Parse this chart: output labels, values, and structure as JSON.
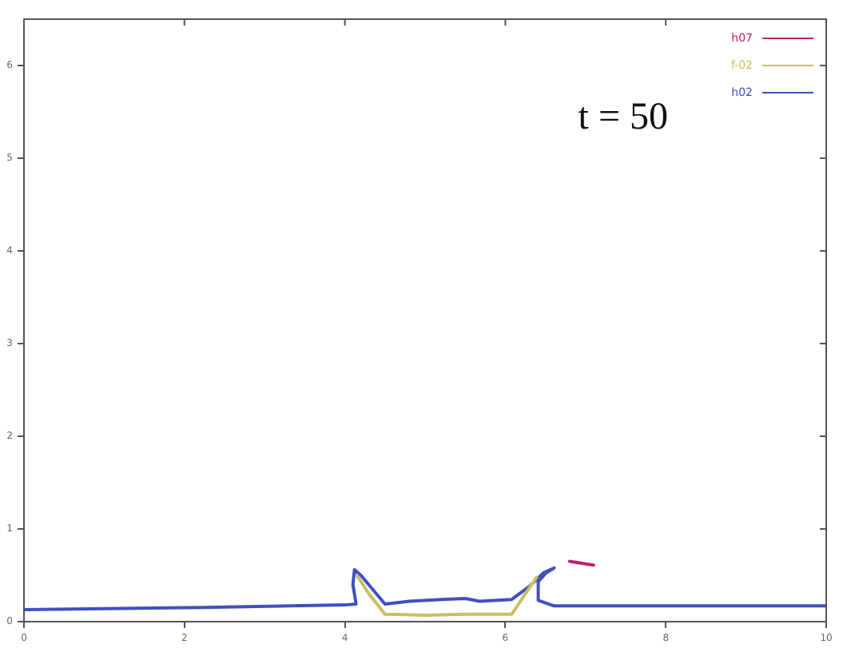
{
  "chart_data": {
    "type": "line",
    "annotations": [
      "t = 50"
    ],
    "xlim": [
      0,
      10
    ],
    "xticks": [
      0,
      2,
      4,
      6,
      8,
      10
    ],
    "ylim": [
      0,
      6.5
    ],
    "yticks": [
      0,
      1,
      2,
      3,
      4,
      5,
      6
    ],
    "legend": "top right",
    "marker": "none",
    "line_style": "solid",
    "grid": false,
    "series": [
      {
        "name": "h07",
        "color": "#c02070",
        "x": [
          6.8,
          7.1
        ],
        "values": [
          0.65,
          0.61
        ]
      },
      {
        "name": "f-02",
        "color": "#c8c060",
        "x": [
          4.15,
          4.3,
          4.5,
          5.0,
          5.5,
          6.08,
          6.25,
          6.39
        ],
        "values": [
          0.5,
          0.3,
          0.08,
          0.07,
          0.08,
          0.08,
          0.3,
          0.48
        ]
      },
      {
        "name": "h02",
        "color": "#4050c0",
        "x": [
          0,
          2,
          4,
          4.14,
          4.1,
          4.12,
          4.2,
          4.5,
          4.8,
          5.21,
          5.5,
          5.68,
          6.08,
          6.3,
          6.48,
          6.61,
          6.5,
          6.41,
          6.41,
          6.61,
          8,
          10
        ],
        "values": [
          0.13,
          0.15,
          0.18,
          0.19,
          0.4,
          0.56,
          0.5,
          0.19,
          0.22,
          0.24,
          0.25,
          0.22,
          0.24,
          0.38,
          0.53,
          0.58,
          0.52,
          0.43,
          0.23,
          0.17,
          0.17,
          0.17
        ]
      }
    ]
  }
}
